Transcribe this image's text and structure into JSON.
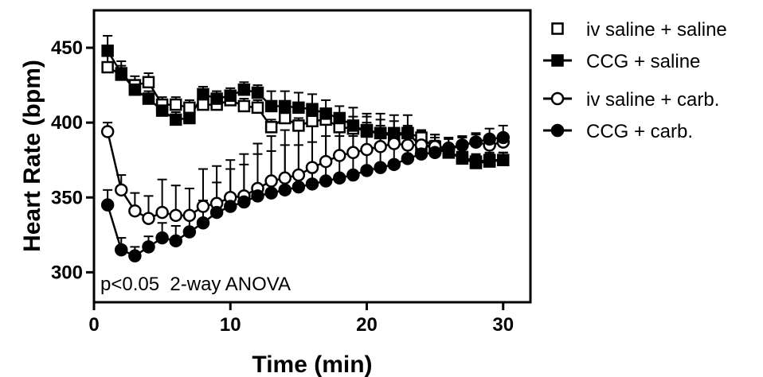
{
  "chart_data": {
    "type": "scatter",
    "title": "",
    "xlabel": "Time (min)",
    "ylabel": "Heart Rate (bpm)",
    "xlim": [
      0,
      32
    ],
    "ylim": [
      280,
      475
    ],
    "xticks": [
      0,
      10,
      20,
      30
    ],
    "yticks": [
      300,
      350,
      400,
      450
    ],
    "legend_position": "right",
    "annotation": "p<0.05  2-way ANOVA",
    "x": [
      1,
      2,
      3,
      4,
      5,
      6,
      7,
      8,
      9,
      10,
      11,
      12,
      13,
      14,
      15,
      16,
      17,
      18,
      19,
      20,
      21,
      22,
      23,
      24,
      25,
      26,
      27,
      28,
      29,
      30
    ],
    "series": [
      {
        "name": "iv saline + saline",
        "marker": "open-square",
        "color": "#000000",
        "values": [
          437,
          432,
          425,
          427,
          412,
          412,
          410,
          412,
          412,
          415,
          411,
          410,
          397,
          403,
          398,
          401,
          402,
          397,
          396,
          395,
          393,
          391,
          393,
          390,
          383,
          380,
          377,
          374,
          375,
          375
        ],
        "errors": [
          8,
          6,
          6,
          6,
          5,
          5,
          5,
          5,
          5,
          5,
          5,
          5,
          5,
          5,
          5,
          5,
          5,
          5,
          5,
          5,
          5,
          5,
          5,
          5,
          5,
          5,
          5,
          5,
          5,
          5
        ]
      },
      {
        "name": "CCG + saline",
        "marker": "filled-square",
        "color": "#000000",
        "values": [
          448,
          433,
          422,
          416,
          408,
          402,
          403,
          419,
          416,
          418,
          422,
          420,
          411,
          411,
          410,
          409,
          406,
          403,
          398,
          394,
          393,
          393,
          393,
          384,
          384,
          380,
          376,
          373,
          374,
          375
        ],
        "errors": [
          10,
          8,
          6,
          5,
          5,
          5,
          5,
          5,
          5,
          5,
          5,
          5,
          10,
          10,
          10,
          10,
          9,
          8,
          12,
          12,
          13,
          12,
          12,
          8,
          6,
          5,
          4,
          5,
          5,
          5
        ]
      },
      {
        "name": "iv saline + carb.",
        "marker": "open-circle",
        "color": "#000000",
        "values": [
          394,
          355,
          341,
          336,
          340,
          338,
          338,
          344,
          346,
          350,
          351,
          356,
          361,
          363,
          365,
          370,
          374,
          378,
          380,
          382,
          384,
          386,
          385,
          385,
          384,
          383,
          385,
          387,
          385,
          387
        ],
        "errors": [
          6,
          10,
          12,
          15,
          22,
          20,
          18,
          25,
          25,
          25,
          28,
          30,
          30,
          32,
          30,
          28,
          28,
          26,
          24,
          22,
          18,
          15,
          12,
          10,
          8,
          6,
          5,
          5,
          5,
          5
        ]
      },
      {
        "name": "CCG + carb.",
        "marker": "filled-circle",
        "color": "#000000",
        "values": [
          345,
          315,
          311,
          317,
          323,
          321,
          327,
          333,
          340,
          344,
          347,
          351,
          353,
          355,
          357,
          359,
          361,
          363,
          365,
          368,
          370,
          372,
          376,
          379,
          380,
          382,
          385,
          387,
          389,
          390
        ],
        "errors": [
          10,
          8,
          6,
          7,
          10,
          10,
          12,
          15,
          20,
          25,
          25,
          28,
          28,
          30,
          28,
          28,
          30,
          28,
          26,
          24,
          22,
          20,
          18,
          15,
          12,
          8,
          6,
          6,
          7,
          8
        ]
      }
    ]
  }
}
